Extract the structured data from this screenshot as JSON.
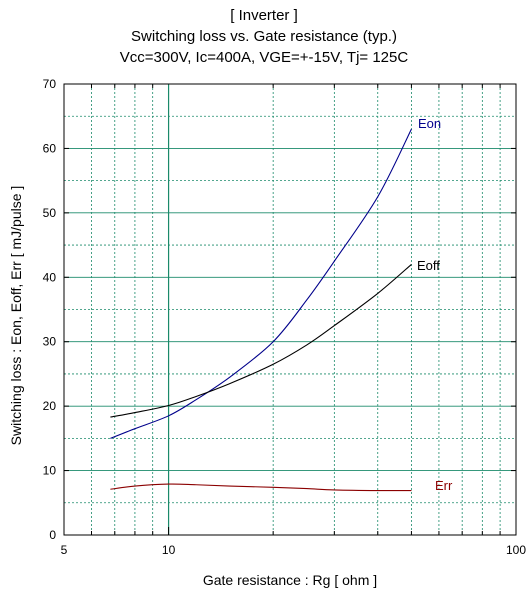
{
  "chart_data": {
    "type": "line",
    "title_lines": [
      "[ Inverter ]",
      "Switching loss  vs.  Gate resistance (typ.)",
      "Vcc=300V, Ic=400A, VGE=+-15V, Tj= 125C"
    ],
    "xlabel": "Gate resistance  :  Rg  [ ohm ]",
    "ylabel": "Switching loss  :  Eon, Eoff, Err  [ mJ/pulse ]",
    "x_scale": "log",
    "xlim": [
      5,
      100
    ],
    "ylim": [
      0,
      70
    ],
    "x_tick_labels": [
      "5",
      "10",
      "100"
    ],
    "x_tick_values": [
      5,
      10,
      100
    ],
    "y_ticks": [
      0,
      10,
      20,
      30,
      40,
      50,
      60,
      70
    ],
    "grid": true,
    "series": [
      {
        "name": "Eon",
        "color": "#00008b",
        "x": [
          6.8,
          8,
          10,
          12,
          15,
          20,
          25,
          30,
          40,
          50
        ],
        "y": [
          15,
          16.5,
          18.5,
          21,
          24.5,
          30,
          36.5,
          42.5,
          52.5,
          63
        ]
      },
      {
        "name": "Eoff",
        "color": "#000000",
        "x": [
          6.8,
          8,
          10,
          12,
          15,
          20,
          25,
          30,
          40,
          50
        ],
        "y": [
          18.3,
          19,
          20.1,
          21.5,
          23.5,
          26.5,
          29.5,
          32.5,
          37.5,
          42
        ]
      },
      {
        "name": "Err",
        "color": "#8b0000",
        "x": [
          6.8,
          8,
          10,
          12,
          15,
          20,
          25,
          30,
          40,
          50
        ],
        "y": [
          7.1,
          7.6,
          7.9,
          7.8,
          7.6,
          7.4,
          7.2,
          7.0,
          6.9,
          6.9
        ]
      }
    ]
  }
}
